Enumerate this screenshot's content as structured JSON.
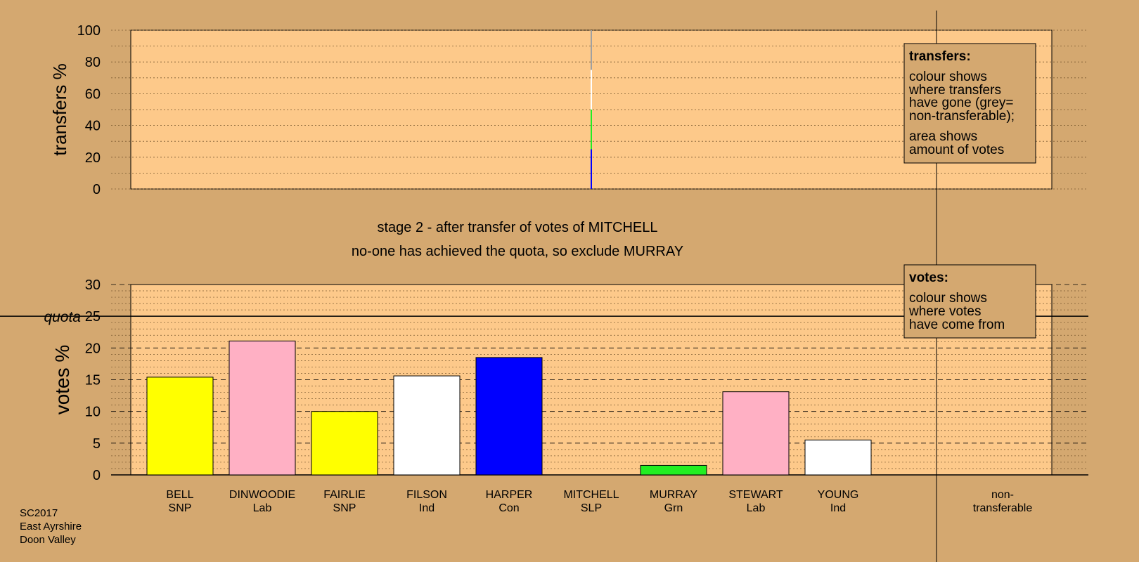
{
  "colors": {
    "background": "#d4a870",
    "plot_fill": "#fdc98a",
    "SNP": "#ffff00",
    "Lab": "#ffb0c4",
    "Ind": "#ffffff",
    "Con": "#0000ff",
    "Grn": "#22ee22",
    "SLP": "#ff0000",
    "nontransferable": "#a0a0a0"
  },
  "stage_text": "stage 2 - after transfer of votes of MITCHELL",
  "status_text": "no-one has achieved the quota, so exclude MURRAY",
  "footer": [
    "SC2017",
    "East Ayrshire",
    "Doon Valley"
  ],
  "transfers_legend": {
    "title": "transfers:",
    "lines1": [
      "colour shows",
      "where transfers",
      "have gone (grey=",
      "non-transferable);"
    ],
    "lines2": [
      "area shows",
      "amount of votes"
    ]
  },
  "votes_legend": {
    "title": "votes:",
    "lines": [
      "colour shows",
      "where votes",
      "have come from"
    ]
  },
  "chart_data": [
    {
      "type": "bar",
      "ylabel": "transfers %",
      "ylim": [
        0,
        100
      ],
      "yticks": [
        0,
        20,
        40,
        60,
        80,
        100
      ],
      "grid": true,
      "transfer_from": "MITCHELL",
      "segments": [
        {
          "party": "Con",
          "value": 25
        },
        {
          "party": "Grn",
          "value": 25
        },
        {
          "party": "Ind",
          "value": 25
        },
        {
          "party": "nontransferable",
          "value": 25
        }
      ]
    },
    {
      "type": "bar",
      "ylabel": "votes %",
      "ylim": [
        0,
        30
      ],
      "yticks": [
        0,
        5,
        10,
        15,
        20,
        25,
        30
      ],
      "quota_label": "quota",
      "quota": 25,
      "grid": true,
      "categories": [
        {
          "name": "BELL",
          "party": "SNP",
          "value": 15.4
        },
        {
          "name": "DINWOODIE",
          "party": "Lab",
          "value": 21.1
        },
        {
          "name": "FAIRLIE",
          "party": "SNP",
          "value": 10.0
        },
        {
          "name": "FILSON",
          "party": "Ind",
          "value": 15.6
        },
        {
          "name": "HARPER",
          "party": "Con",
          "value": 18.5
        },
        {
          "name": "MITCHELL",
          "party": "SLP",
          "value": 0
        },
        {
          "name": "MURRAY",
          "party": "Grn",
          "value": 1.5
        },
        {
          "name": "STEWART",
          "party": "Lab",
          "value": 13.1
        },
        {
          "name": "YOUNG",
          "party": "Ind",
          "value": 5.5
        }
      ],
      "nontransferable_label": [
        "non-",
        "transferable"
      ],
      "nontransferable_value": 0
    }
  ]
}
